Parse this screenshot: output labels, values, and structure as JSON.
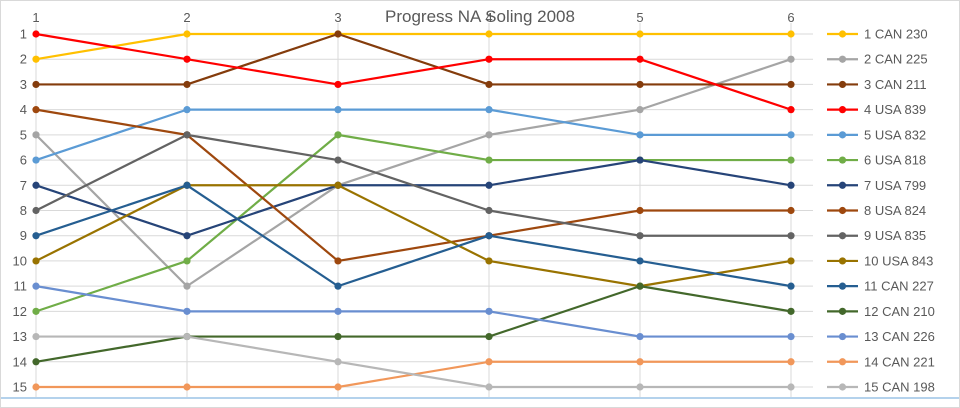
{
  "chart_data": {
    "type": "line",
    "variant": "bump-rank-progress",
    "title": "Progress NA Soling 2008",
    "x": [
      "1",
      "2",
      "3",
      "4",
      "5",
      "6"
    ],
    "x_label_position": "top",
    "ylabel": "",
    "xlabel": "",
    "y_axis": {
      "ticks": [
        1,
        2,
        3,
        4,
        5,
        6,
        7,
        8,
        9,
        10,
        11,
        12,
        13,
        14,
        15
      ],
      "min": 1,
      "max": 15,
      "inverted": true
    },
    "grid": {
      "horizontal": true,
      "vertical": true,
      "color": "#d9d9d9"
    },
    "axis_text_color": "#595959",
    "baseline_color": "#9cc3e5",
    "legend_position": "right",
    "series": [
      {
        "name": "1 CAN 230",
        "color": "#FFC000",
        "values": [
          2,
          1,
          1,
          1,
          1,
          1
        ]
      },
      {
        "name": "2 CAN 225",
        "color": "#A5A5A5",
        "values": [
          5,
          11,
          7,
          5,
          4,
          2
        ]
      },
      {
        "name": "3 CAN 211",
        "color": "#843C0C",
        "values": [
          3,
          3,
          1,
          3,
          3,
          3
        ]
      },
      {
        "name": "4 USA 839",
        "color": "#FF0000",
        "values": [
          1,
          2,
          3,
          2,
          2,
          4
        ]
      },
      {
        "name": "5 USA 832",
        "color": "#5B9BD5",
        "values": [
          6,
          4,
          4,
          4,
          5,
          5
        ]
      },
      {
        "name": "6 USA 818",
        "color": "#70AD47",
        "values": [
          12,
          10,
          5,
          6,
          6,
          6
        ]
      },
      {
        "name": "7 USA 799",
        "color": "#264478",
        "values": [
          7,
          9,
          7,
          7,
          6,
          7
        ]
      },
      {
        "name": "8 USA 824",
        "color": "#9E480E",
        "values": [
          4,
          5,
          10,
          9,
          8,
          8
        ]
      },
      {
        "name": "9 USA 835",
        "color": "#636363",
        "values": [
          8,
          5,
          6,
          8,
          9,
          9
        ]
      },
      {
        "name": "10 USA 843",
        "color": "#997300",
        "values": [
          10,
          7,
          7,
          10,
          11,
          10
        ]
      },
      {
        "name": "11 CAN 227",
        "color": "#255E91",
        "values": [
          9,
          7,
          11,
          9,
          10,
          11
        ]
      },
      {
        "name": "12 CAN 210",
        "color": "#43682B",
        "values": [
          14,
          13,
          13,
          13,
          11,
          12
        ]
      },
      {
        "name": "13 CAN 226",
        "color": "#698ED0",
        "values": [
          11,
          12,
          12,
          12,
          13,
          13
        ]
      },
      {
        "name": "14 CAN 221",
        "color": "#F1975A",
        "values": [
          15,
          15,
          15,
          14,
          14,
          14
        ]
      },
      {
        "name": "15 CAN 198",
        "color": "#B7B7B7",
        "values": [
          13,
          13,
          14,
          15,
          15,
          15
        ]
      }
    ]
  }
}
